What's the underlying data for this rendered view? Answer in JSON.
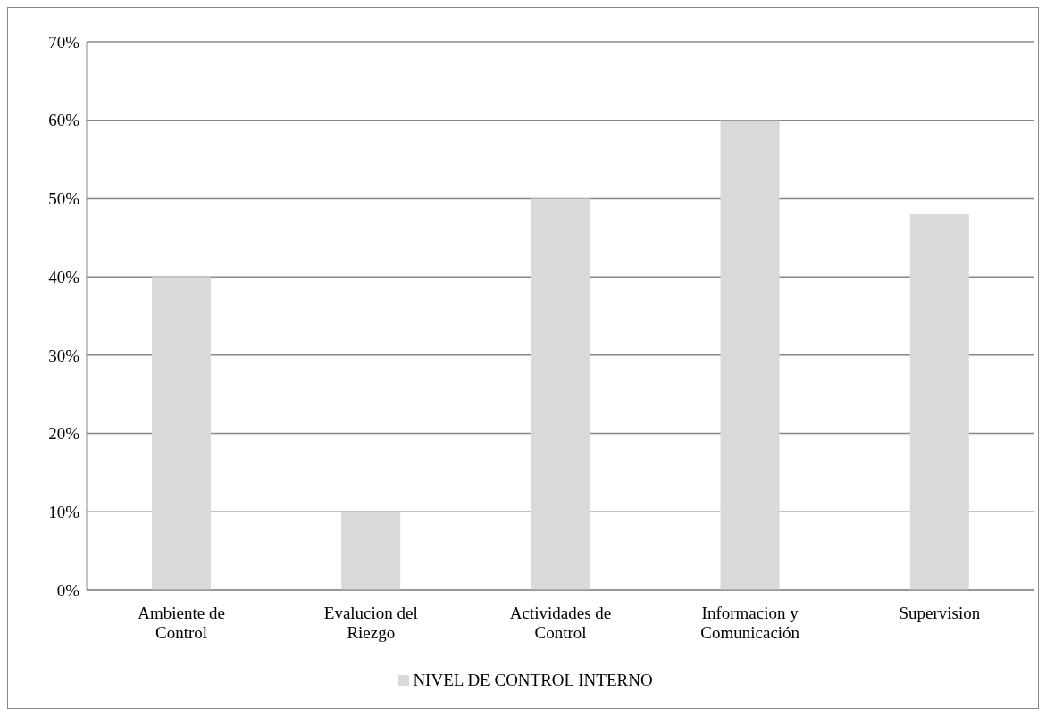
{
  "chart_data": {
    "type": "bar",
    "categories": [
      "Ambiente de Control",
      "Evalucion del Riezgo",
      "Actividades de Control",
      "Informacion y Comunicación",
      "Supervision"
    ],
    "series": [
      {
        "name": "NIVEL DE CONTROL INTERNO",
        "color": "#d9d9d9",
        "values": [
          40,
          10,
          50,
          60,
          48
        ]
      }
    ],
    "ylim": [
      0,
      70
    ],
    "yticks": [
      {
        "value": 0,
        "label": "0%"
      },
      {
        "value": 10,
        "label": "10%"
      },
      {
        "value": 20,
        "label": "20%"
      },
      {
        "value": 30,
        "label": "30%"
      },
      {
        "value": 40,
        "label": "40%"
      },
      {
        "value": 50,
        "label": "50%"
      },
      {
        "value": 60,
        "label": "60%"
      },
      {
        "value": 70,
        "label": "70%"
      }
    ],
    "grid": "y",
    "legend": "bottom"
  }
}
